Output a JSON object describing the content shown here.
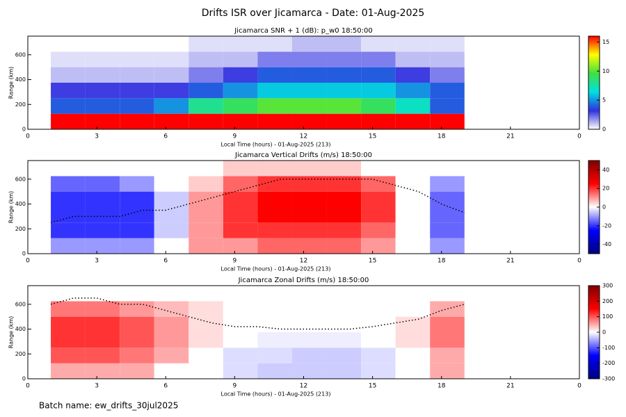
{
  "title": "Drifts ISR over Jicamarca - Date: 01-Aug-2025",
  "footer": "Batch name: ew_drifts_30jul2025",
  "chart_data": [
    {
      "type": "heatmap",
      "title": "Jicamarca SNR + 1 (dB): p_w0 18:50:00",
      "xlabel": "Local Time (hours) - 01-Aug-2025 (213)",
      "ylabel": "Range (km)",
      "x": [
        1,
        2.5,
        4,
        5.5,
        7,
        8.5,
        10,
        11.5,
        13,
        14.5,
        16,
        17.5,
        19
      ],
      "y": [
        0,
        125,
        250,
        375,
        500,
        625,
        750
      ],
      "values": [
        [
          16,
          16,
          16,
          16,
          16,
          16,
          16,
          16,
          16,
          16,
          16,
          16
        ],
        [
          4,
          4,
          4,
          5,
          8,
          9,
          10,
          10,
          10,
          9,
          7,
          4
        ],
        [
          3,
          3,
          3,
          3,
          4,
          5,
          6,
          6,
          6,
          6,
          5,
          4
        ],
        [
          1,
          1,
          1,
          1,
          2,
          3,
          4,
          4,
          4,
          4,
          3,
          2
        ],
        [
          0.5,
          0.5,
          0.5,
          0.5,
          1,
          1,
          2,
          2,
          2,
          2,
          1,
          1
        ],
        [
          0,
          0,
          0,
          0,
          0.5,
          0.5,
          0.5,
          1,
          1,
          0.5,
          0.5,
          0.5
        ]
      ],
      "xlim": [
        0,
        24
      ],
      "xticks": [
        0,
        3,
        6,
        9,
        12,
        15,
        18,
        21,
        {
          "value": 24,
          "label": "0"
        }
      ],
      "ylim": [
        0,
        750
      ],
      "yticks": [
        0,
        200,
        400,
        600
      ],
      "clim": [
        0,
        16
      ],
      "cticks": [
        0,
        5,
        10,
        15
      ],
      "colorscale": [
        "#ffffff",
        "#3030e0",
        "#00e0e0",
        "#40e040",
        "#ffff00",
        "#ff0000"
      ]
    },
    {
      "type": "heatmap",
      "title": "Jicamarca Vertical Drifts (m/s) 18:50:00",
      "xlabel": "Local Time (hours) - 01-Aug-2025 (213)",
      "ylabel": "Range (km)",
      "x": [
        1,
        2.5,
        4,
        5.5,
        7,
        8.5,
        10,
        11.5,
        13,
        14.5,
        16,
        17.5,
        19
      ],
      "y": [
        0,
        125,
        250,
        375,
        500,
        625,
        750
      ],
      "values": [
        [
          -10,
          -10,
          -10,
          0,
          10,
          10,
          15,
          15,
          15,
          10,
          0,
          -10
        ],
        [
          -20,
          -20,
          -20,
          -5,
          10,
          20,
          20,
          20,
          20,
          15,
          0,
          -15
        ],
        [
          -20,
          -20,
          -20,
          -5,
          10,
          20,
          25,
          25,
          25,
          20,
          0,
          -15
        ],
        [
          -20,
          -20,
          -20,
          -5,
          10,
          20,
          25,
          25,
          25,
          20,
          0,
          -15
        ],
        [
          -15,
          -15,
          -10,
          0,
          5,
          15,
          20,
          20,
          20,
          15,
          0,
          -10
        ],
        [
          0,
          0,
          0,
          0,
          0,
          5,
          5,
          5,
          5,
          0,
          0,
          0
        ]
      ],
      "contour": {
        "x": [
          1,
          2,
          3,
          4,
          5,
          6,
          7,
          8,
          9,
          10,
          11,
          12,
          13,
          14,
          15,
          16,
          17,
          18,
          19
        ],
        "y": [
          250,
          300,
          300,
          300,
          350,
          350,
          400,
          450,
          500,
          550,
          600,
          600,
          600,
          600,
          600,
          550,
          500,
          400,
          330
        ]
      },
      "xlim": [
        0,
        24
      ],
      "xticks": [
        0,
        3,
        6,
        9,
        12,
        15,
        18,
        21,
        {
          "value": 24,
          "label": "0"
        }
      ],
      "ylim": [
        0,
        750
      ],
      "yticks": [
        0,
        200,
        400,
        600
      ],
      "clim": [
        -50,
        50
      ],
      "cticks": [
        -40,
        -20,
        0,
        20,
        40
      ],
      "colorscale": [
        "#000080",
        "#0000ff",
        "#ffffff",
        "#ff0000",
        "#800000"
      ]
    },
    {
      "type": "heatmap",
      "title": "Jicamarca Zonal Drifts (m/s) 18:50:00",
      "xlabel": "Local Time (hours) - 01-Aug-2025 (213)",
      "ylabel": "Range (km)",
      "x": [
        1,
        2.5,
        4,
        5.5,
        7,
        8.5,
        10,
        11.5,
        13,
        14.5,
        16,
        17.5,
        19
      ],
      "y": [
        0,
        125,
        250,
        375,
        500,
        625,
        750
      ],
      "values": [
        [
          50,
          50,
          50,
          0,
          0,
          -20,
          -30,
          -30,
          -30,
          -20,
          0,
          50
        ],
        [
          100,
          100,
          80,
          50,
          0,
          -20,
          -20,
          -30,
          -30,
          -20,
          0,
          50
        ],
        [
          120,
          120,
          100,
          60,
          20,
          0,
          -10,
          -10,
          -10,
          0,
          20,
          80
        ],
        [
          120,
          120,
          100,
          60,
          20,
          0,
          0,
          0,
          0,
          0,
          20,
          80
        ],
        [
          80,
          80,
          60,
          40,
          20,
          0,
          0,
          0,
          0,
          0,
          0,
          50
        ],
        [
          0,
          0,
          0,
          0,
          0,
          0,
          0,
          0,
          0,
          0,
          0,
          0
        ]
      ],
      "contour": {
        "x": [
          1,
          2,
          3,
          4,
          5,
          6,
          7,
          8,
          9,
          10,
          11,
          12,
          13,
          14,
          15,
          16,
          17,
          18,
          19
        ],
        "y": [
          600,
          650,
          650,
          600,
          600,
          550,
          500,
          450,
          420,
          420,
          400,
          400,
          400,
          400,
          420,
          450,
          480,
          550,
          600
        ]
      },
      "xlim": [
        0,
        24
      ],
      "xticks": [
        0,
        3,
        6,
        9,
        12,
        15,
        18,
        21,
        {
          "value": 24,
          "label": "0"
        }
      ],
      "ylim": [
        0,
        750
      ],
      "yticks": [
        0,
        200,
        400,
        600
      ],
      "clim": [
        -300,
        300
      ],
      "cticks": [
        -300,
        -200,
        -100,
        0,
        100,
        200,
        300
      ],
      "colorscale": [
        "#000080",
        "#0000ff",
        "#ffffff",
        "#ff0000",
        "#800000"
      ]
    }
  ]
}
